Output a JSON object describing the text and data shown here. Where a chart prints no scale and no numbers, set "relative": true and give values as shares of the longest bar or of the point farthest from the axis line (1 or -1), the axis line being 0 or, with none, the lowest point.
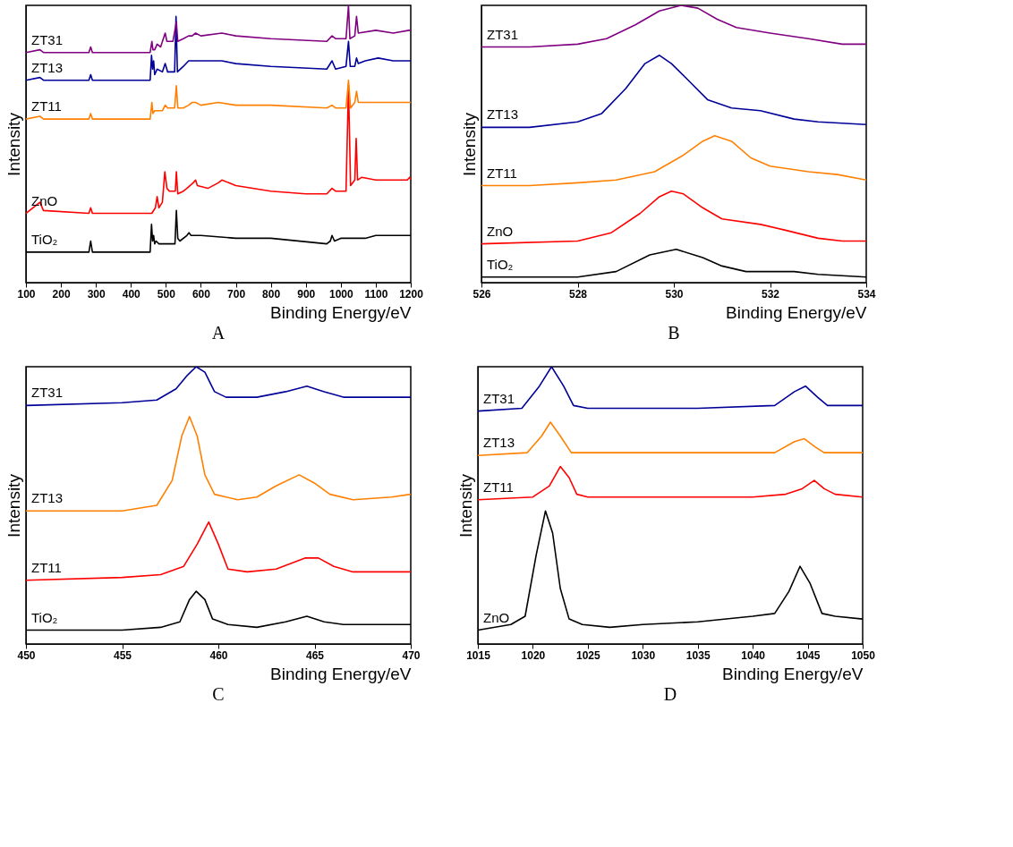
{
  "chart_data": [
    {
      "type": "line",
      "relative": true,
      "xlabel": "Binding Energy/eV",
      "ylabel": "Intensity",
      "xlim": [
        100,
        1200
      ],
      "xticks": [
        100,
        200,
        300,
        400,
        500,
        600,
        700,
        800,
        900,
        1000,
        1100,
        1200
      ],
      "annotations": [
        "A"
      ],
      "series": [
        {
          "name": "TiO₂",
          "color": "#000000",
          "x": [
            100,
            280,
            285,
            290,
            300,
            455,
            459,
            462,
            465,
            468,
            472,
            480,
            520,
            526,
            530,
            534,
            540,
            560,
            566,
            572,
            580,
            600,
            700,
            800,
            960,
            970,
            975,
            982,
            1000,
            1050,
            1070,
            1100,
            1107,
            1150,
            1200
          ],
          "values": [
            0.11,
            0.11,
            0.15,
            0.11,
            0.11,
            0.11,
            0.21,
            0.15,
            0.17,
            0.14,
            0.15,
            0.14,
            0.14,
            0.14,
            0.26,
            0.16,
            0.15,
            0.17,
            0.18,
            0.17,
            0.17,
            0.17,
            0.16,
            0.16,
            0.14,
            0.15,
            0.17,
            0.15,
            0.16,
            0.16,
            0.16,
            0.17,
            0.17,
            0.17,
            0.17
          ]
        },
        {
          "name": "ZnO",
          "color": "#ff0000",
          "x": [
            100,
            140,
            150,
            280,
            285,
            290,
            460,
            470,
            475,
            480,
            490,
            497,
            503,
            510,
            527,
            530,
            534,
            550,
            560,
            578,
            585,
            590,
            620,
            650,
            660,
            700,
            800,
            900,
            960,
            975,
            985,
            1015,
            1022,
            1028,
            1040,
            1044,
            1048,
            1060,
            1100,
            1150,
            1190,
            1197,
            1200
          ],
          "values": [
            0.25,
            0.29,
            0.26,
            0.25,
            0.27,
            0.25,
            0.25,
            0.27,
            0.31,
            0.27,
            0.29,
            0.4,
            0.34,
            0.33,
            0.33,
            0.4,
            0.32,
            0.33,
            0.34,
            0.36,
            0.37,
            0.35,
            0.34,
            0.36,
            0.37,
            0.35,
            0.33,
            0.32,
            0.32,
            0.34,
            0.33,
            0.33,
            0.71,
            0.35,
            0.37,
            0.52,
            0.37,
            0.38,
            0.37,
            0.37,
            0.37,
            0.38,
            0.37
          ]
        },
        {
          "name": "ZT11",
          "color": "#ff8000",
          "x": [
            100,
            140,
            150,
            280,
            285,
            290,
            455,
            460,
            463,
            468,
            475,
            490,
            498,
            505,
            525,
            530,
            534,
            550,
            565,
            575,
            585,
            600,
            650,
            700,
            800,
            960,
            975,
            985,
            1015,
            1022,
            1028,
            1040,
            1045,
            1050,
            1100,
            1150,
            1200
          ],
          "values": [
            0.59,
            0.6,
            0.59,
            0.59,
            0.61,
            0.59,
            0.59,
            0.65,
            0.61,
            0.62,
            0.62,
            0.62,
            0.64,
            0.63,
            0.63,
            0.71,
            0.63,
            0.63,
            0.64,
            0.65,
            0.65,
            0.64,
            0.65,
            0.64,
            0.64,
            0.63,
            0.64,
            0.63,
            0.63,
            0.73,
            0.63,
            0.65,
            0.69,
            0.65,
            0.65,
            0.65,
            0.65
          ]
        },
        {
          "name": "ZT13",
          "color": "#000099",
          "x": [
            100,
            140,
            150,
            280,
            285,
            290,
            455,
            459,
            462,
            465,
            468,
            475,
            490,
            498,
            505,
            525,
            529,
            533,
            550,
            565,
            575,
            585,
            600,
            660,
            700,
            800,
            960,
            975,
            985,
            1015,
            1022,
            1027,
            1040,
            1045,
            1050,
            1070,
            1107,
            1150,
            1200
          ],
          "values": [
            0.73,
            0.74,
            0.73,
            0.73,
            0.75,
            0.73,
            0.73,
            0.82,
            0.77,
            0.8,
            0.75,
            0.77,
            0.76,
            0.79,
            0.76,
            0.76,
            0.96,
            0.76,
            0.78,
            0.8,
            0.8,
            0.8,
            0.8,
            0.8,
            0.79,
            0.78,
            0.77,
            0.8,
            0.77,
            0.78,
            0.87,
            0.78,
            0.78,
            0.81,
            0.79,
            0.8,
            0.81,
            0.8,
            0.8
          ]
        },
        {
          "name": "ZT31",
          "color": "#800080",
          "x": [
            100,
            140,
            150,
            280,
            285,
            290,
            455,
            460,
            463,
            468,
            475,
            485,
            498,
            503,
            520,
            530,
            534,
            550,
            565,
            575,
            585,
            600,
            660,
            700,
            800,
            960,
            975,
            985,
            1015,
            1022,
            1026,
            1040,
            1045,
            1050,
            1100,
            1150,
            1195,
            1200
          ],
          "values": [
            0.83,
            0.84,
            0.83,
            0.83,
            0.85,
            0.83,
            0.83,
            0.87,
            0.84,
            0.84,
            0.86,
            0.85,
            0.9,
            0.87,
            0.87,
            0.94,
            0.87,
            0.88,
            0.89,
            0.89,
            0.9,
            0.89,
            0.9,
            0.89,
            0.88,
            0.87,
            0.89,
            0.88,
            0.88,
            1.0,
            0.88,
            0.89,
            0.96,
            0.9,
            0.91,
            0.9,
            0.91,
            0.91
          ]
        }
      ]
    },
    {
      "type": "line",
      "relative": true,
      "xlabel": "Binding Energy/eV",
      "ylabel": "Intensity",
      "xlim": [
        526,
        534
      ],
      "xticks": [
        526,
        528,
        530,
        532,
        534
      ],
      "annotations": [
        "B"
      ],
      "series": [
        {
          "name": "TiO₂",
          "color": "#000000",
          "x": [
            526,
            528,
            528.8,
            529.5,
            530.05,
            530.6,
            531,
            531.5,
            532.5,
            533,
            534
          ],
          "values": [
            0.02,
            0.02,
            0.04,
            0.1,
            0.12,
            0.09,
            0.06,
            0.04,
            0.04,
            0.03,
            0.02
          ]
        },
        {
          "name": "ZnO",
          "color": "#ff0000",
          "x": [
            526,
            528,
            528.7,
            529.3,
            529.7,
            529.95,
            530.2,
            530.6,
            531,
            531.8,
            532.3,
            533,
            533.5,
            534
          ],
          "values": [
            0.14,
            0.15,
            0.18,
            0.25,
            0.31,
            0.33,
            0.32,
            0.27,
            0.23,
            0.21,
            0.19,
            0.16,
            0.15,
            0.15
          ]
        },
        {
          "name": "ZT11",
          "color": "#ff8000",
          "x": [
            526,
            527,
            528,
            528.8,
            529.6,
            530.2,
            530.6,
            530.85,
            531.2,
            531.6,
            532,
            532.8,
            533.4,
            534
          ],
          "values": [
            0.35,
            0.35,
            0.36,
            0.37,
            0.4,
            0.46,
            0.51,
            0.53,
            0.51,
            0.45,
            0.42,
            0.4,
            0.39,
            0.37
          ]
        },
        {
          "name": "ZT13",
          "color": "#000099",
          "x": [
            526,
            527,
            528,
            528.5,
            529,
            529.4,
            529.7,
            529.95,
            530.3,
            530.7,
            531.2,
            531.8,
            532.5,
            533,
            534
          ],
          "values": [
            0.56,
            0.56,
            0.58,
            0.61,
            0.7,
            0.79,
            0.82,
            0.79,
            0.73,
            0.66,
            0.63,
            0.62,
            0.59,
            0.58,
            0.57
          ]
        },
        {
          "name": "ZT31",
          "color": "#800080",
          "x": [
            526,
            527,
            528,
            528.6,
            529.2,
            529.7,
            530.15,
            530.5,
            530.9,
            531.3,
            532,
            532.8,
            533.5,
            534
          ],
          "values": [
            0.85,
            0.85,
            0.86,
            0.88,
            0.93,
            0.98,
            1.0,
            0.99,
            0.95,
            0.92,
            0.9,
            0.88,
            0.86,
            0.86
          ]
        }
      ]
    },
    {
      "type": "line",
      "relative": true,
      "xlabel": "Binding Energy/eV",
      "ylabel": "Intensity",
      "xlim": [
        450,
        470
      ],
      "xticks": [
        450,
        455,
        460,
        465,
        470
      ],
      "annotations": [
        "C"
      ],
      "series": [
        {
          "name": "TiO₂",
          "color": "#000000",
          "x": [
            450,
            455,
            457,
            458,
            458.5,
            458.85,
            459.3,
            459.7,
            460.5,
            462,
            463.5,
            464.6,
            465.5,
            466.5,
            470
          ],
          "values": [
            0.05,
            0.05,
            0.06,
            0.08,
            0.16,
            0.19,
            0.16,
            0.09,
            0.07,
            0.06,
            0.08,
            0.1,
            0.08,
            0.07,
            0.07
          ]
        },
        {
          "name": "ZT11",
          "color": "#ff0000",
          "x": [
            450,
            455,
            457,
            458.2,
            458.9,
            459.5,
            460,
            460.5,
            461.5,
            463,
            464.5,
            465.2,
            466,
            467,
            470
          ],
          "values": [
            0.23,
            0.24,
            0.25,
            0.28,
            0.36,
            0.44,
            0.36,
            0.27,
            0.26,
            0.27,
            0.31,
            0.31,
            0.28,
            0.26,
            0.26
          ]
        },
        {
          "name": "ZT13",
          "color": "#ff8000",
          "x": [
            450,
            455,
            456.8,
            457.6,
            458.1,
            458.5,
            458.9,
            459.3,
            459.8,
            461,
            462,
            463,
            464.2,
            465,
            465.8,
            467,
            469,
            470
          ],
          "values": [
            0.48,
            0.48,
            0.5,
            0.59,
            0.75,
            0.82,
            0.75,
            0.61,
            0.54,
            0.52,
            0.53,
            0.57,
            0.61,
            0.58,
            0.54,
            0.52,
            0.53,
            0.54
          ]
        },
        {
          "name": "ZT31",
          "color": "#000099",
          "x": [
            450,
            455,
            456.8,
            457.8,
            458.4,
            458.85,
            459.3,
            459.8,
            460.4,
            462,
            463.5,
            464.6,
            465.5,
            466.5,
            468,
            470
          ],
          "values": [
            0.86,
            0.87,
            0.88,
            0.92,
            0.97,
            1.0,
            0.98,
            0.91,
            0.89,
            0.89,
            0.91,
            0.93,
            0.91,
            0.89,
            0.89,
            0.89
          ]
        }
      ]
    },
    {
      "type": "line",
      "relative": true,
      "xlabel": "Binding Energy/eV",
      "ylabel": "Intensity",
      "xlim": [
        1015,
        1050
      ],
      "xticks": [
        1015,
        1020,
        1025,
        1030,
        1035,
        1040,
        1045,
        1050
      ],
      "annotations": [
        "D"
      ],
      "series": [
        {
          "name": "ZnO",
          "color": "#000000",
          "x": [
            1015,
            1018,
            1019.3,
            1020.3,
            1021.15,
            1021.8,
            1022.5,
            1023.3,
            1024.5,
            1027,
            1030,
            1035,
            1040,
            1042,
            1043.3,
            1044.3,
            1045.2,
            1046.3,
            1047.5,
            1050
          ],
          "values": [
            0.05,
            0.07,
            0.1,
            0.32,
            0.48,
            0.4,
            0.2,
            0.09,
            0.07,
            0.06,
            0.07,
            0.08,
            0.1,
            0.11,
            0.19,
            0.28,
            0.22,
            0.11,
            0.1,
            0.09
          ]
        },
        {
          "name": "ZT11",
          "color": "#ff0000",
          "x": [
            1015,
            1020,
            1021.5,
            1022.5,
            1023.3,
            1024,
            1025,
            1030,
            1040,
            1043,
            1044.5,
            1045.6,
            1046.5,
            1047.5,
            1050
          ],
          "values": [
            0.52,
            0.53,
            0.57,
            0.64,
            0.6,
            0.54,
            0.53,
            0.53,
            0.53,
            0.54,
            0.56,
            0.59,
            0.56,
            0.54,
            0.53
          ]
        },
        {
          "name": "ZT13",
          "color": "#ff8000",
          "x": [
            1015,
            1019.5,
            1020.8,
            1021.6,
            1022.5,
            1023.5,
            1025,
            1035,
            1042,
            1043.8,
            1044.7,
            1045.7,
            1046.5,
            1050
          ],
          "values": [
            0.68,
            0.69,
            0.75,
            0.8,
            0.75,
            0.69,
            0.69,
            0.69,
            0.69,
            0.73,
            0.74,
            0.71,
            0.69,
            0.69
          ]
        },
        {
          "name": "ZT31",
          "color": "#000099",
          "x": [
            1015,
            1019,
            1020.6,
            1021.7,
            1022.8,
            1023.7,
            1025,
            1030,
            1035,
            1042,
            1043.8,
            1044.8,
            1045.9,
            1046.8,
            1050
          ],
          "values": [
            0.84,
            0.85,
            0.93,
            1.0,
            0.93,
            0.86,
            0.85,
            0.85,
            0.85,
            0.86,
            0.91,
            0.93,
            0.89,
            0.86,
            0.86
          ]
        }
      ]
    }
  ]
}
